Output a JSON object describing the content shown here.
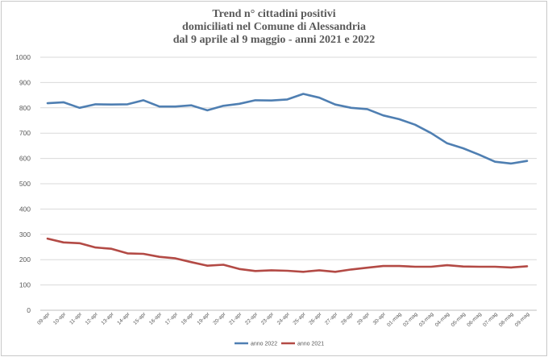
{
  "chart_data": {
    "type": "line",
    "title": [
      "Trend n° cittadini positivi",
      "domiciliati nel Comune di Alessandria",
      "dal 9 aprile al 9 maggio - anni 2021 e 2022"
    ],
    "xlabel": "",
    "ylabel": "",
    "ylim": [
      0,
      1000
    ],
    "yticks": [
      0,
      100,
      200,
      300,
      400,
      500,
      600,
      700,
      800,
      900,
      1000
    ],
    "grid": true,
    "legend_position": "bottom",
    "categories": [
      "09-apr",
      "10-apr",
      "11-apr",
      "12-apr",
      "13-apr",
      "14-apr",
      "15-apr",
      "16-apr",
      "17-apr",
      "18-apr",
      "19-apr",
      "20-apr",
      "21-apr",
      "22-apr",
      "23-apr",
      "24-apr",
      "25-apr",
      "26-apr",
      "27-apr",
      "28-apr",
      "29-apr",
      "30-apr",
      "01-mag",
      "02-mag",
      "03-mag",
      "04-mag",
      "05-mag",
      "06-mag",
      "07-mag",
      "08-mag",
      "09-mag"
    ],
    "series": [
      {
        "name": "anno 2022",
        "color": "#4f7fb2",
        "values": [
          818,
          822,
          800,
          814,
          813,
          814,
          830,
          805,
          805,
          810,
          790,
          808,
          816,
          830,
          829,
          833,
          855,
          840,
          813,
          800,
          795,
          770,
          755,
          733,
          700,
          660,
          640,
          615,
          587,
          580,
          590
        ]
      },
      {
        "name": "anno 2021",
        "color": "#b34a45",
        "values": [
          283,
          268,
          265,
          248,
          243,
          225,
          223,
          211,
          205,
          190,
          176,
          180,
          163,
          155,
          158,
          156,
          152,
          158,
          152,
          161,
          168,
          175,
          175,
          172,
          172,
          178,
          173,
          172,
          172,
          169,
          174
        ]
      }
    ]
  }
}
